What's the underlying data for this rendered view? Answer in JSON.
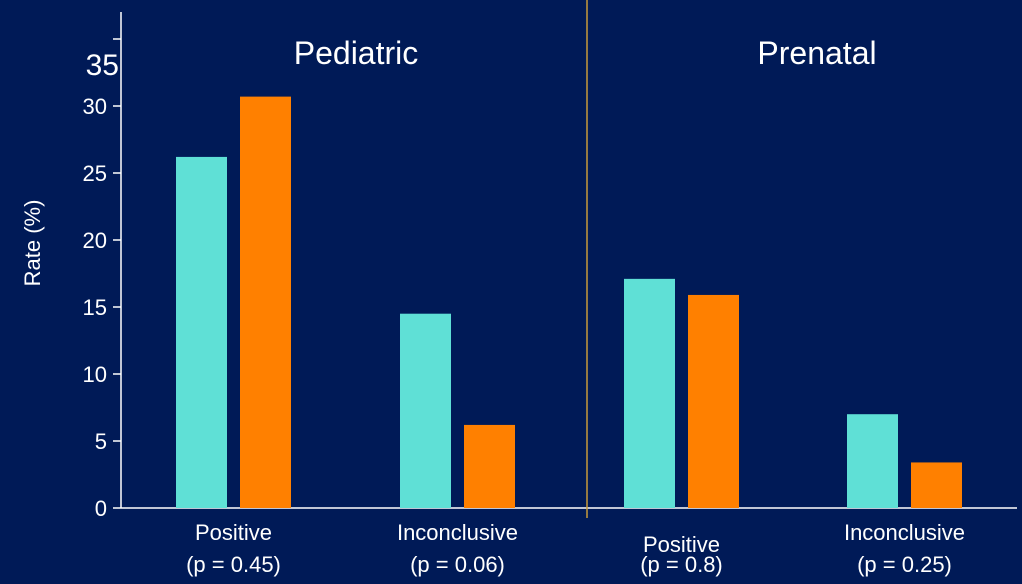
{
  "chart_data": {
    "type": "bar",
    "ylabel": "Rate (%)",
    "ylim": [
      0,
      35
    ],
    "yticks": [
      0,
      5,
      10,
      15,
      20,
      25,
      30,
      35
    ],
    "panels": [
      {
        "title": "Pediatric",
        "groups": [
          {
            "label": "Positive",
            "sublabel": "(p = 0.45)",
            "values": [
              26.2,
              30.7
            ]
          },
          {
            "label": "Inconclusive",
            "sublabel": "(p = 0.06)",
            "values": [
              14.5,
              6.2
            ]
          }
        ]
      },
      {
        "title": "Prenatal",
        "groups": [
          {
            "label": "Positive",
            "sublabel": "(p = 0.8)",
            "values": [
              17.1,
              15.9
            ]
          },
          {
            "label": "Inconclusive",
            "sublabel": "(p = 0.25)",
            "values": [
              7.0,
              3.4
            ]
          }
        ]
      }
    ],
    "series_colors": [
      "#5fe0d6",
      "#ff8000"
    ],
    "colors": {
      "background": "#001a57",
      "axis": "#ffffff",
      "divider": "#c89a3a",
      "text": "#ffffff"
    },
    "grid": false
  }
}
